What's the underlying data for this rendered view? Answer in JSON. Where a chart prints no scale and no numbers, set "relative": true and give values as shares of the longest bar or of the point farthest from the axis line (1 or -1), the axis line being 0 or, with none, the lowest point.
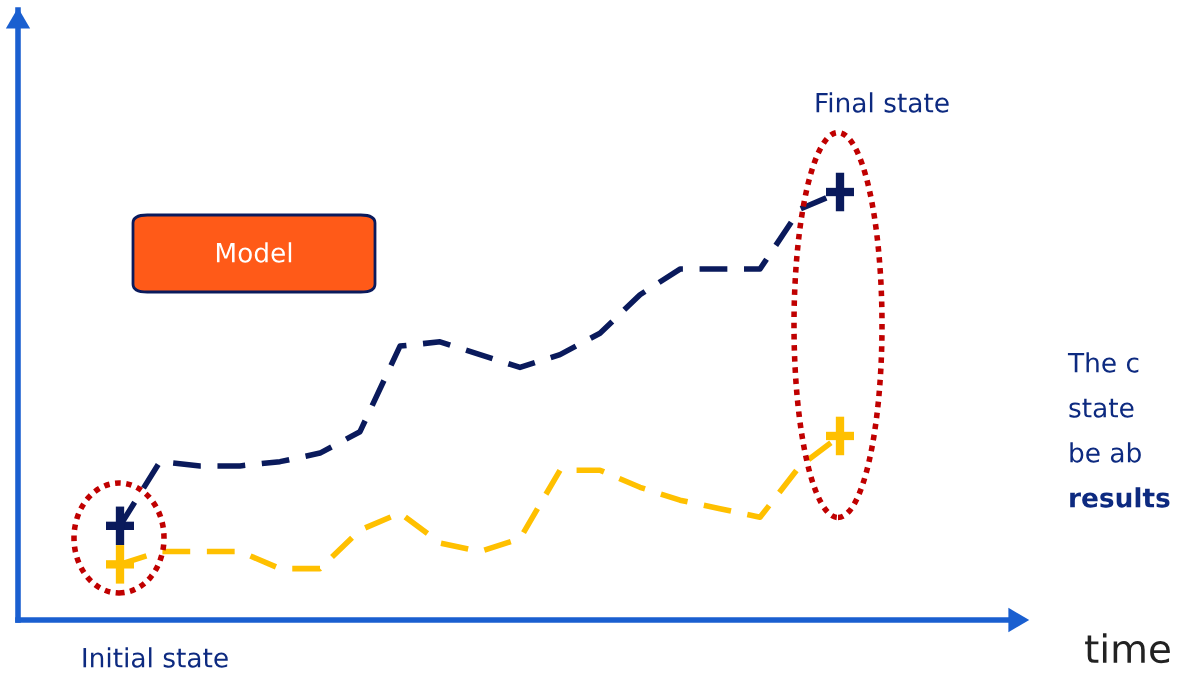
{
  "chart_data": {
    "type": "line",
    "relative": true,
    "line_style": "dashed",
    "grid": false,
    "legend": false,
    "categories": [
      null,
      null,
      null,
      null,
      null,
      null,
      null,
      null,
      null,
      null,
      null,
      null,
      null,
      null,
      null,
      null,
      null,
      null,
      null
    ],
    "series": [
      {
        "color": "#0a1a5c",
        "values": [
          0.22,
          0.37,
          0.36,
          0.36,
          0.37,
          0.39,
          0.44,
          0.64,
          0.65,
          0.62,
          0.59,
          0.62,
          0.67,
          0.76,
          0.82,
          0.82,
          0.82,
          0.96,
          1
        ]
      },
      {
        "color": "#ffc000",
        "values": [
          0.13,
          0.16,
          0.16,
          0.16,
          0.12,
          0.12,
          0.21,
          0.25,
          0.18,
          0.16,
          0.19,
          0.35,
          0.35,
          0.31,
          0.28,
          0.26,
          0.24,
          0.36,
          0.43
        ]
      }
    ],
    "annotations": [
      "Model",
      "Initial state",
      "Final state",
      "The c",
      "state",
      "be ab",
      "results",
      "time"
    ]
  }
}
